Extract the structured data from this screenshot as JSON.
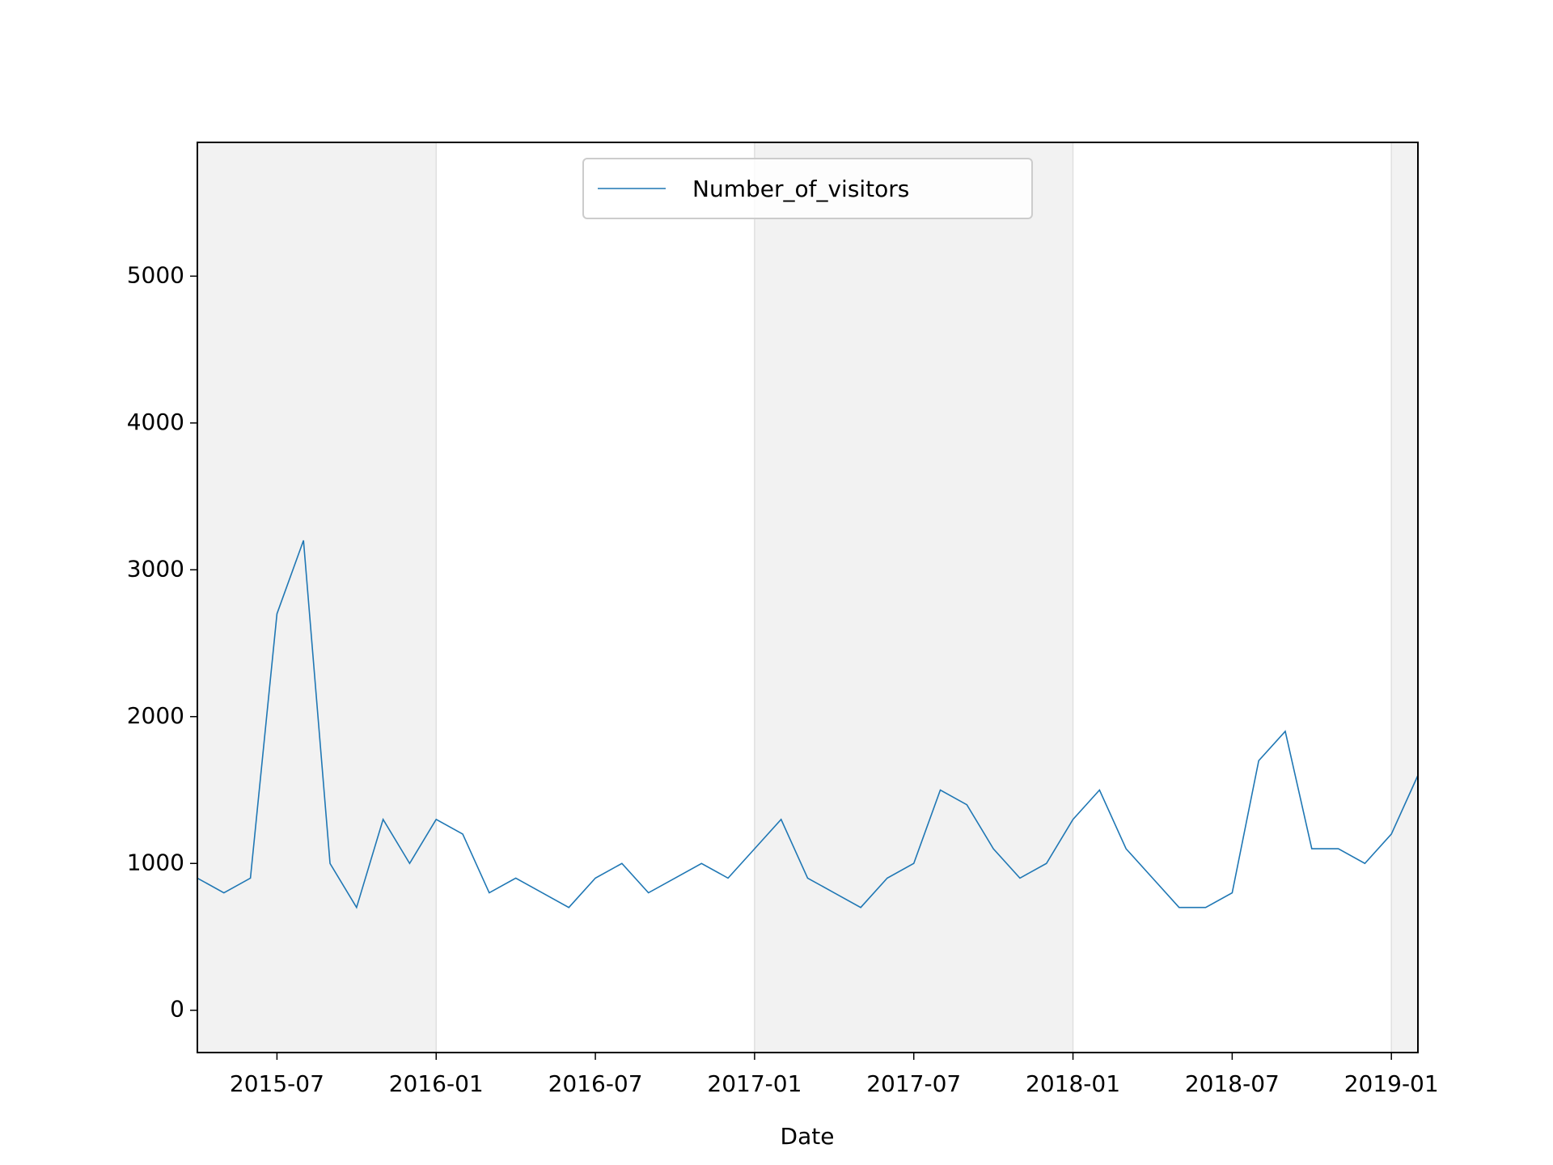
{
  "chart_data": {
    "type": "line",
    "xlabel": "Date",
    "x": [
      "2015-04",
      "2015-05",
      "2015-06",
      "2015-07",
      "2015-08",
      "2015-09",
      "2015-10",
      "2015-11",
      "2015-12",
      "2016-01",
      "2016-02",
      "2016-03",
      "2016-04",
      "2016-05",
      "2016-06",
      "2016-07",
      "2016-08",
      "2016-09",
      "2016-10",
      "2016-11",
      "2016-12",
      "2017-01",
      "2017-02",
      "2017-03",
      "2017-04",
      "2017-05",
      "2017-06",
      "2017-07",
      "2017-08",
      "2017-09",
      "2017-10",
      "2017-11",
      "2017-12",
      "2018-01",
      "2018-02",
      "2018-03",
      "2018-04",
      "2018-05",
      "2018-06",
      "2018-07",
      "2018-08",
      "2018-09",
      "2018-10",
      "2018-11",
      "2018-12",
      "2019-01",
      "2019-02"
    ],
    "series": [
      {
        "name": "Number_of_visitors",
        "color": "#1f77b4",
        "values": [
          900,
          800,
          900,
          2700,
          3200,
          1000,
          700,
          1300,
          1000,
          1300,
          1200,
          800,
          900,
          800,
          700,
          900,
          1000,
          800,
          900,
          1000,
          900,
          1100,
          1300,
          900,
          800,
          700,
          900,
          1000,
          1500,
          1400,
          1100,
          900,
          1000,
          1300,
          1500,
          1100,
          900,
          700,
          700,
          800,
          1700,
          1900,
          1100,
          1100,
          1000,
          1200,
          1600
        ]
      }
    ],
    "xlim": [
      "2015-04",
      "2019-02"
    ],
    "xticks": [
      "2015-07",
      "2016-01",
      "2016-07",
      "2017-01",
      "2017-07",
      "2018-01",
      "2018-07",
      "2019-01"
    ],
    "ylim": [
      -288,
      5911
    ],
    "yticks": [
      0,
      1000,
      2000,
      3000,
      4000,
      5000
    ],
    "shaded_spans": [
      [
        "2015-04",
        "2016-01"
      ],
      [
        "2017-01",
        "2018-01"
      ],
      [
        "2019-01",
        "2019-02"
      ]
    ],
    "shade_color": "#f2f2f2",
    "grid": false,
    "legend": "upper center"
  }
}
